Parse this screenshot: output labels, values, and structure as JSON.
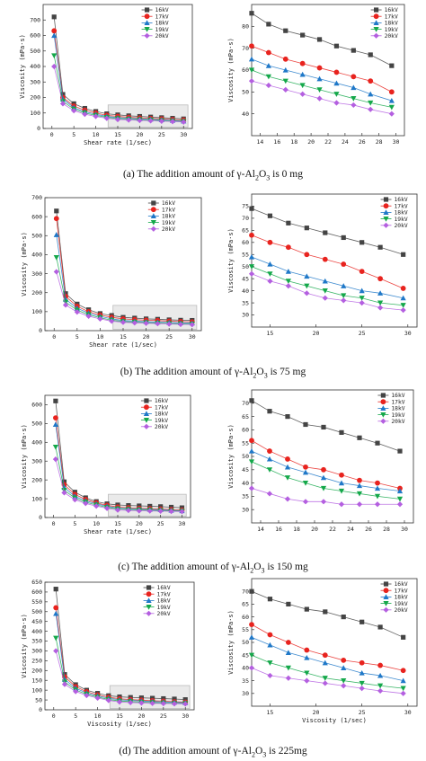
{
  "colors": {
    "16kV": "#444444",
    "17kV": "#e8231e",
    "18kV": "#1f78c8",
    "19kV": "#14a84a",
    "20kV": "#b45fe0",
    "box": "#bbbbbb"
  },
  "series_names": [
    "16kV",
    "17kV",
    "18kV",
    "19kV",
    "20kV"
  ],
  "captions": [
    {
      "prefix": "(a) The addition amount of γ-Al",
      "sub1": "2",
      "mid": "O",
      "sub2": "3",
      "suffix": " is 0 mg"
    },
    {
      "prefix": "(b) The addition amount of γ-Al",
      "sub1": "2",
      "mid": "O",
      "sub2": "3",
      "suffix": " is 75 mg"
    },
    {
      "prefix": "(c) The addition amount of γ-Al",
      "sub1": "2",
      "mid": "O",
      "sub2": "3",
      "suffix": " is 150 mg"
    },
    {
      "prefix": "(d) The addition amount of γ-Al",
      "sub1": "2",
      "mid": "O",
      "sub2": "3",
      "suffix": " is 225mg"
    }
  ],
  "chart_data": [
    {
      "panel": "a",
      "side": "left",
      "type": "line",
      "xlabel": "Shear rate (1/sec)",
      "ylabel": "Viscosity (mPa·s)",
      "xlim": [
        -2,
        32
      ],
      "ylim": [
        0,
        800
      ],
      "xticks": [
        0,
        5,
        10,
        15,
        20,
        25,
        30
      ],
      "yticks": [
        0,
        100,
        200,
        300,
        400,
        500,
        600,
        700
      ],
      "x": [
        0.5,
        2.5,
        5,
        7.5,
        10,
        12.5,
        15,
        17.5,
        20,
        22.5,
        25,
        27.5,
        30
      ],
      "series": [
        {
          "name": "16kV",
          "values": [
            720,
            220,
            160,
            130,
            110,
            95,
            88,
            82,
            78,
            74,
            70,
            66,
            62
          ]
        },
        {
          "name": "17kV",
          "values": [
            630,
            200,
            145,
            118,
            100,
            85,
            78,
            72,
            68,
            65,
            62,
            58,
            55
          ]
        },
        {
          "name": "18kV",
          "values": [
            600,
            190,
            135,
            108,
            92,
            78,
            70,
            66,
            62,
            60,
            56,
            52,
            48
          ]
        },
        {
          "name": "19kV",
          "values": [
            470,
            175,
            125,
            100,
            85,
            72,
            64,
            60,
            57,
            55,
            51,
            48,
            45
          ]
        },
        {
          "name": "20kV",
          "values": [
            400,
            160,
            115,
            92,
            78,
            66,
            58,
            55,
            52,
            50,
            47,
            45,
            42
          ]
        }
      ]
    },
    {
      "panel": "a",
      "side": "right",
      "type": "line",
      "xlabel": "",
      "ylabel": "Viscosity (mPa·s)",
      "xlim": [
        13,
        31
      ],
      "ylim": [
        30,
        90
      ],
      "xticks": [
        14,
        16,
        18,
        20,
        22,
        24,
        26,
        28,
        30
      ],
      "yticks": [
        40,
        50,
        60,
        70,
        80
      ],
      "x": [
        13,
        15,
        17,
        19,
        21,
        23,
        25,
        27,
        29.5
      ],
      "series": [
        {
          "name": "16kV",
          "values": [
            86,
            81,
            78,
            76,
            74,
            71,
            69,
            67,
            62
          ]
        },
        {
          "name": "17kV",
          "values": [
            71,
            68,
            65,
            63,
            61,
            59,
            57,
            55,
            50
          ]
        },
        {
          "name": "18kV",
          "values": [
            65,
            62,
            60,
            58,
            56,
            54,
            52,
            49,
            46
          ]
        },
        {
          "name": "19kV",
          "values": [
            60,
            57,
            55,
            53,
            51,
            49,
            47,
            45,
            43
          ]
        },
        {
          "name": "20kV",
          "values": [
            55,
            53,
            51,
            49,
            47,
            45,
            44,
            42,
            40
          ]
        }
      ]
    },
    {
      "panel": "b",
      "side": "left",
      "type": "line",
      "xlabel": "Shear rate (1/sec)",
      "ylabel": "Viscosity (mPa·s)",
      "xlim": [
        -2,
        32
      ],
      "ylim": [
        0,
        700
      ],
      "xticks": [
        0,
        5,
        10,
        15,
        20,
        25,
        30
      ],
      "yticks": [
        0,
        100,
        200,
        300,
        400,
        500,
        600,
        700
      ],
      "x": [
        0.5,
        2.5,
        5,
        7.5,
        10,
        12.5,
        15,
        17.5,
        20,
        22.5,
        25,
        27.5,
        30
      ],
      "series": [
        {
          "name": "16kV",
          "values": [
            630,
            195,
            140,
            110,
            90,
            80,
            70,
            66,
            62,
            60,
            57,
            55,
            54
          ]
        },
        {
          "name": "17kV",
          "values": [
            590,
            180,
            128,
            100,
            82,
            70,
            62,
            58,
            55,
            53,
            50,
            48,
            46
          ]
        },
        {
          "name": "18kV",
          "values": [
            505,
            165,
            118,
            92,
            75,
            62,
            53,
            50,
            47,
            45,
            43,
            41,
            40
          ]
        },
        {
          "name": "19kV",
          "values": [
            385,
            150,
            108,
            84,
            68,
            55,
            48,
            45,
            42,
            40,
            38,
            36,
            35
          ]
        },
        {
          "name": "20kV",
          "values": [
            310,
            135,
            98,
            76,
            62,
            50,
            44,
            41,
            39,
            37,
            35,
            33,
            32
          ]
        }
      ]
    },
    {
      "panel": "b",
      "side": "right",
      "type": "line",
      "xlabel": "",
      "ylabel": "Viscosity (mPa·s)",
      "xlim": [
        13,
        31
      ],
      "ylim": [
        25,
        80
      ],
      "xticks": [
        15,
        20,
        25,
        30
      ],
      "yticks": [
        30,
        35,
        40,
        45,
        50,
        55,
        60,
        65,
        70,
        75
      ],
      "x": [
        13,
        15,
        17,
        19,
        21,
        23,
        25,
        27,
        29.5
      ],
      "series": [
        {
          "name": "16kV",
          "values": [
            74,
            71,
            68,
            66,
            64,
            62,
            60,
            58,
            55
          ]
        },
        {
          "name": "17kV",
          "values": [
            63,
            60,
            58,
            55,
            53,
            51,
            48,
            45,
            41
          ]
        },
        {
          "name": "18kV",
          "values": [
            54,
            51,
            48,
            46,
            44,
            42,
            40,
            39,
            37
          ]
        },
        {
          "name": "19kV",
          "values": [
            50,
            47,
            44,
            42,
            40,
            38,
            37,
            35,
            34
          ]
        },
        {
          "name": "20kV",
          "values": [
            47,
            44,
            42,
            39,
            37,
            36,
            35,
            33,
            32
          ]
        }
      ]
    },
    {
      "panel": "c",
      "side": "left",
      "type": "line",
      "xlabel": "Shear rate (1/sec)",
      "ylabel": "Viscosity (mPa·s)",
      "xlim": [
        -2,
        32
      ],
      "ylim": [
        0,
        650
      ],
      "xticks": [
        0,
        5,
        10,
        15,
        20,
        25,
        30
      ],
      "yticks": [
        0,
        100,
        200,
        300,
        400,
        500,
        600
      ],
      "x": [
        0.5,
        2.5,
        5,
        7.5,
        10,
        12.5,
        15,
        17.5,
        20,
        22.5,
        25,
        27.5,
        30
      ],
      "series": [
        {
          "name": "16kV",
          "values": [
            620,
            190,
            135,
            105,
            85,
            73,
            67,
            64,
            62,
            60,
            58,
            55,
            52
          ]
        },
        {
          "name": "17kV",
          "values": [
            530,
            175,
            123,
            96,
            78,
            65,
            56,
            52,
            49,
            47,
            45,
            42,
            40
          ]
        },
        {
          "name": "18kV",
          "values": [
            495,
            160,
            113,
            89,
            73,
            60,
            50,
            47,
            45,
            43,
            41,
            38,
            36
          ]
        },
        {
          "name": "19kV",
          "values": [
            375,
            145,
            104,
            82,
            67,
            54,
            46,
            43,
            41,
            39,
            37,
            35,
            34
          ]
        },
        {
          "name": "20kV",
          "values": [
            310,
            132,
            95,
            75,
            61,
            49,
            40,
            38,
            36,
            35,
            34,
            33,
            32
          ]
        }
      ]
    },
    {
      "panel": "c",
      "side": "right",
      "type": "line",
      "xlabel": "",
      "ylabel": "Viscosity (mPa·s)",
      "xlim": [
        13,
        31
      ],
      "ylim": [
        25,
        75
      ],
      "xticks": [
        14,
        16,
        18,
        20,
        22,
        24,
        26,
        28,
        30
      ],
      "yticks": [
        30,
        35,
        40,
        45,
        50,
        55,
        60,
        65,
        70
      ],
      "x": [
        13,
        15,
        17,
        19,
        21,
        23,
        25,
        27,
        29.5
      ],
      "series": [
        {
          "name": "16kV",
          "values": [
            71,
            67,
            65,
            62,
            61,
            59,
            57,
            55,
            52
          ]
        },
        {
          "name": "17kV",
          "values": [
            56,
            52,
            49,
            46,
            45,
            43,
            41,
            40,
            38
          ]
        },
        {
          "name": "18kV",
          "values": [
            52,
            49,
            46,
            44,
            42,
            40,
            39,
            38,
            37
          ]
        },
        {
          "name": "19kV",
          "values": [
            48,
            45,
            42,
            40,
            38,
            37,
            36,
            35,
            34
          ]
        },
        {
          "name": "20kV",
          "values": [
            38,
            36,
            34,
            33,
            33,
            32,
            32,
            32,
            32
          ]
        }
      ]
    },
    {
      "panel": "d",
      "side": "left",
      "type": "line",
      "xlabel": "Viscosity (1/sec)",
      "ylabel": "Viscosity (mPa·s)",
      "xlim": [
        -2,
        32
      ],
      "ylim": [
        0,
        650
      ],
      "xticks": [
        0,
        5,
        10,
        15,
        20,
        25,
        30
      ],
      "yticks": [
        0,
        50,
        100,
        150,
        200,
        250,
        300,
        350,
        400,
        450,
        500,
        550,
        600,
        650
      ],
      "x": [
        0.5,
        2.5,
        5,
        7.5,
        10,
        12.5,
        15,
        17.5,
        20,
        22.5,
        25,
        27.5,
        30
      ],
      "series": [
        {
          "name": "16kV",
          "values": [
            615,
            180,
            128,
            100,
            84,
            72,
            66,
            63,
            61,
            59,
            57,
            55,
            52
          ]
        },
        {
          "name": "17kV",
          "values": [
            520,
            168,
            118,
            92,
            76,
            64,
            56,
            52,
            49,
            46,
            44,
            41,
            39
          ]
        },
        {
          "name": "18kV",
          "values": [
            490,
            155,
            110,
            86,
            71,
            59,
            51,
            48,
            45,
            42,
            40,
            38,
            36
          ]
        },
        {
          "name": "19kV",
          "values": [
            365,
            142,
            101,
            79,
            65,
            53,
            45,
            42,
            39,
            37,
            35,
            33,
            32
          ]
        },
        {
          "name": "20kV",
          "values": [
            300,
            130,
            93,
            73,
            60,
            48,
            40,
            37,
            35,
            33,
            32,
            31,
            30
          ]
        }
      ]
    },
    {
      "panel": "d",
      "side": "right",
      "type": "line",
      "xlabel": "Viscosity (1/sec)",
      "ylabel": "Viscosity (mPa·s)",
      "xlim": [
        13,
        31
      ],
      "ylim": [
        25,
        75
      ],
      "xticks": [
        15,
        20,
        25,
        30
      ],
      "yticks": [
        30,
        35,
        40,
        45,
        50,
        55,
        60,
        65,
        70
      ],
      "x": [
        13,
        15,
        17,
        19,
        21,
        23,
        25,
        27,
        29.5
      ],
      "series": [
        {
          "name": "16kV",
          "values": [
            70,
            67,
            65,
            63,
            62,
            60,
            58,
            56,
            52
          ]
        },
        {
          "name": "17kV",
          "values": [
            57,
            53,
            50,
            47,
            45,
            43,
            42,
            41,
            39
          ]
        },
        {
          "name": "18kV",
          "values": [
            52,
            49,
            46,
            44,
            42,
            40,
            38,
            37,
            35
          ]
        },
        {
          "name": "19kV",
          "values": [
            45,
            42,
            40,
            38,
            36,
            35,
            34,
            33,
            32
          ]
        },
        {
          "name": "20kV",
          "values": [
            40,
            37,
            36,
            35,
            34,
            33,
            32,
            31,
            30
          ]
        }
      ]
    }
  ]
}
